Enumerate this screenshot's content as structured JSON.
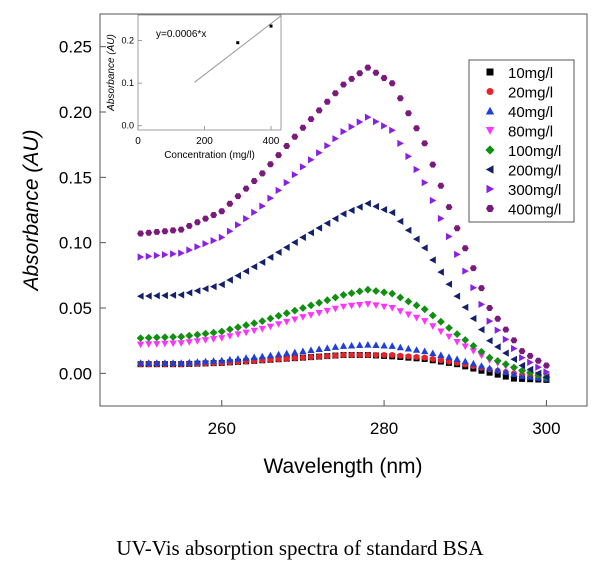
{
  "chart_data": {
    "type": "scatter",
    "xlabel": "Wavelength (nm)",
    "ylabel": "Absorbance (AU)",
    "xlim": [
      245,
      305
    ],
    "ylim": [
      -0.025,
      0.275
    ],
    "xticks": [
      260,
      280,
      300
    ],
    "yticks": [
      0.0,
      0.05,
      0.1,
      0.15,
      0.2,
      0.25
    ],
    "ytick_labels": [
      "0.00",
      "0.05",
      "0.10",
      "0.15",
      "0.20",
      "0.25"
    ],
    "legend_position": "top-right",
    "series": [
      {
        "name": "10mg/l",
        "color": "#000000",
        "marker": "square",
        "points": [
          [
            250,
            0.007
          ],
          [
            255,
            0.007
          ],
          [
            260,
            0.008
          ],
          [
            265,
            0.01
          ],
          [
            270,
            0.012
          ],
          [
            275,
            0.014
          ],
          [
            278,
            0.014
          ],
          [
            281,
            0.013
          ],
          [
            285,
            0.011
          ],
          [
            289,
            0.007
          ],
          [
            292,
            0.002
          ],
          [
            296,
            -0.004
          ],
          [
            300,
            -0.005
          ]
        ]
      },
      {
        "name": "20mg/l",
        "color": "#e8222a",
        "marker": "circle",
        "points": [
          [
            250,
            0.007
          ],
          [
            255,
            0.007
          ],
          [
            260,
            0.008
          ],
          [
            265,
            0.01
          ],
          [
            270,
            0.012
          ],
          [
            275,
            0.014
          ],
          [
            278,
            0.014
          ],
          [
            281,
            0.014
          ],
          [
            285,
            0.012
          ],
          [
            289,
            0.008
          ],
          [
            293,
            0.003
          ],
          [
            297,
            -0.001
          ],
          [
            300,
            -0.003
          ]
        ]
      },
      {
        "name": "40mg/l",
        "color": "#1f3fd9",
        "marker": "triangle-up",
        "points": [
          [
            250,
            0.008
          ],
          [
            255,
            0.008
          ],
          [
            260,
            0.01
          ],
          [
            265,
            0.013
          ],
          [
            270,
            0.017
          ],
          [
            275,
            0.021
          ],
          [
            278,
            0.022
          ],
          [
            281,
            0.021
          ],
          [
            285,
            0.017
          ],
          [
            289,
            0.011
          ],
          [
            293,
            0.004
          ],
          [
            297,
            -0.002
          ],
          [
            300,
            -0.004
          ]
        ]
      },
      {
        "name": "80mg/l",
        "color": "#ff33ff",
        "marker": "triangle-down",
        "points": [
          [
            250,
            0.022
          ],
          [
            255,
            0.023
          ],
          [
            260,
            0.027
          ],
          [
            265,
            0.034
          ],
          [
            270,
            0.043
          ],
          [
            275,
            0.051
          ],
          [
            278,
            0.053
          ],
          [
            281,
            0.05
          ],
          [
            285,
            0.04
          ],
          [
            289,
            0.024
          ],
          [
            293,
            0.01
          ],
          [
            297,
            0.001
          ],
          [
            300,
            -0.002
          ]
        ]
      },
      {
        "name": "100mg/l",
        "color": "#118f11",
        "marker": "diamond",
        "points": [
          [
            250,
            0.027
          ],
          [
            255,
            0.028
          ],
          [
            260,
            0.032
          ],
          [
            265,
            0.04
          ],
          [
            270,
            0.05
          ],
          [
            275,
            0.06
          ],
          [
            278,
            0.064
          ],
          [
            281,
            0.061
          ],
          [
            285,
            0.049
          ],
          [
            289,
            0.03
          ],
          [
            293,
            0.012
          ],
          [
            297,
            0.002
          ],
          [
            300,
            -0.003
          ]
        ]
      },
      {
        "name": "200mg/l",
        "color": "#14206e",
        "marker": "triangle-left",
        "points": [
          [
            250,
            0.059
          ],
          [
            255,
            0.06
          ],
          [
            260,
            0.068
          ],
          [
            265,
            0.085
          ],
          [
            270,
            0.104
          ],
          [
            275,
            0.122
          ],
          [
            278,
            0.13
          ],
          [
            281,
            0.123
          ],
          [
            285,
            0.096
          ],
          [
            289,
            0.059
          ],
          [
            293,
            0.025
          ],
          [
            297,
            0.006
          ],
          [
            300,
            -0.003
          ]
        ]
      },
      {
        "name": "300mg/l",
        "color": "#8a1fe6",
        "marker": "triangle-right",
        "points": [
          [
            250,
            0.089
          ],
          [
            255,
            0.092
          ],
          [
            260,
            0.104
          ],
          [
            265,
            0.128
          ],
          [
            270,
            0.158
          ],
          [
            275,
            0.185
          ],
          [
            278,
            0.196
          ],
          [
            281,
            0.186
          ],
          [
            285,
            0.146
          ],
          [
            289,
            0.091
          ],
          [
            293,
            0.04
          ],
          [
            297,
            0.012
          ],
          [
            300,
            0.001
          ]
        ]
      },
      {
        "name": "400mg/l",
        "color": "#7b1a7d",
        "marker": "hexagon",
        "points": [
          [
            250,
            0.107
          ],
          [
            255,
            0.11
          ],
          [
            260,
            0.124
          ],
          [
            265,
            0.153
          ],
          [
            270,
            0.188
          ],
          [
            275,
            0.221
          ],
          [
            278,
            0.234
          ],
          [
            281,
            0.222
          ],
          [
            285,
            0.176
          ],
          [
            289,
            0.111
          ],
          [
            293,
            0.05
          ],
          [
            297,
            0.017
          ],
          [
            300,
            0.006
          ]
        ]
      }
    ],
    "inset": {
      "xlabel": "Concentration (mg/l)",
      "ylabel": "Absorbance (AU)",
      "equation": "y=0.0006*x",
      "xlim": [
        0,
        430
      ],
      "ylim": [
        -0.01,
        0.26
      ],
      "xticks": [
        0,
        200,
        400
      ],
      "yticks": [
        0.0,
        0.1,
        0.2
      ],
      "ytick_labels": [
        "0.0",
        "0.1",
        "0.2"
      ],
      "points": [
        [
          300,
          0.195
        ],
        [
          400,
          0.234
        ]
      ],
      "fit_slope": 0.0006
    }
  },
  "caption": "UV-Vis absorption spectra of standard BSA"
}
